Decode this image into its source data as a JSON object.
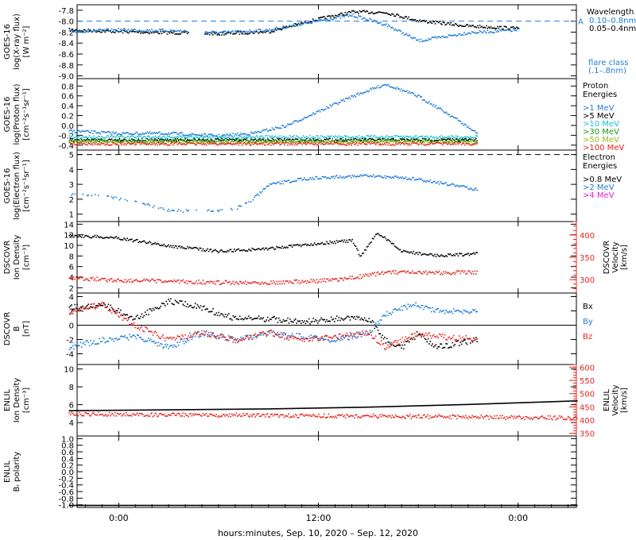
{
  "xaxis_label": "hours:minutes, Sep. 10, 2020 – Sep. 12, 2020",
  "x_ticks": [
    "0:00",
    "12:00",
    "0:00"
  ],
  "colors": {
    "black": "#000000",
    "blue": "#1f7bd6",
    "cyan": "#19c0d8",
    "green": "#1a9a1a",
    "yellowgreen": "#9ab81a",
    "orange": "#ff8c00",
    "red": "#e8231e",
    "magenta": "#e01ed8"
  },
  "chart_data": [
    {
      "type": "scatter",
      "ylabel": [
        "GOES-16",
        "log(X-ray flux)",
        "[W m⁻²]"
      ],
      "y_ticks": [
        "-7.8",
        "-8.0",
        "-8.2",
        "-8.4",
        "-8.6",
        "-8.8",
        "-9.0"
      ],
      "ylim": [
        -9.05,
        -7.7
      ],
      "reference_line": -8.0,
      "legend_title": "Wavelength",
      "legend": [
        {
          "label": "0.10–0.8nm",
          "color": "blue"
        },
        {
          "label": "0.05–0.4nm",
          "color": "black"
        }
      ],
      "legend_note": [
        "flare class",
        "(.1–.8nm)"
      ],
      "flare_marker": "A",
      "series": [
        {
          "name": "0.05–0.4nm",
          "color": "black",
          "x": [
            -3,
            0,
            3,
            6,
            9,
            12,
            14,
            16,
            18,
            21,
            24
          ],
          "y": [
            -8.15,
            -8.18,
            -8.2,
            -8.22,
            -8.18,
            -7.95,
            -7.82,
            -7.83,
            -7.98,
            -8.08,
            -8.12
          ]
        },
        {
          "name": "0.10–0.8nm",
          "color": "blue",
          "x": [
            -3,
            0,
            3,
            6,
            9,
            12,
            14,
            16,
            18,
            21,
            24
          ],
          "y": [
            -8.18,
            -8.15,
            -8.16,
            -8.2,
            -8.15,
            -7.98,
            -7.88,
            -8.05,
            -8.35,
            -8.2,
            -8.15
          ]
        }
      ],
      "gaps": [
        [
          4.2,
          5.1
        ]
      ]
    },
    {
      "type": "scatter",
      "ylabel": [
        "GOES-16",
        "log(Proton flux)",
        "[cm⁻²s⁻¹sr⁻¹]"
      ],
      "y_ticks": [
        "0.8",
        "0.6",
        "0.4",
        "0.2",
        "0.0",
        "-0.2",
        "-0.4"
      ],
      "ylim": [
        -0.5,
        0.95
      ],
      "legend_title": [
        "Proton",
        "Energies"
      ],
      "legend": [
        {
          "label": ">1 MeV",
          "color": "blue"
        },
        {
          "label": ">5 MeV",
          "color": "black"
        },
        {
          "label": ">10 MeV",
          "color": "cyan"
        },
        {
          "label": ">30 MeV",
          "color": "green"
        },
        {
          "label": ">50 MeV",
          "color": "yellowgreen"
        },
        {
          "label": ">100 MeV",
          "color": "red"
        }
      ],
      "series": [
        {
          "name": ">1 MeV",
          "color": "blue",
          "x": [
            -3,
            0,
            3,
            6,
            8,
            10,
            12,
            14,
            16,
            18,
            20,
            21.5
          ],
          "y": [
            -0.1,
            -0.15,
            -0.15,
            -0.2,
            -0.15,
            0.0,
            0.3,
            0.6,
            0.85,
            0.6,
            0.2,
            -0.15
          ]
        },
        {
          "name": ">5 MeV",
          "color": "black",
          "x": [
            -3,
            21.5
          ],
          "y": [
            -0.28,
            -0.28
          ]
        },
        {
          "name": ">10 MeV",
          "color": "cyan",
          "x": [
            -3,
            21.5
          ],
          "y": [
            -0.22,
            -0.22
          ]
        },
        {
          "name": ">30 MeV",
          "color": "green",
          "x": [
            -3,
            21.5
          ],
          "y": [
            -0.3,
            -0.3
          ]
        },
        {
          "name": ">50 MeV",
          "color": "yellowgreen",
          "x": [
            -3,
            21.5
          ],
          "y": [
            -0.33,
            -0.33
          ]
        },
        {
          "name": ">100 MeV",
          "color": "red",
          "x": [
            -3,
            21.5
          ],
          "y": [
            -0.36,
            -0.36
          ]
        }
      ]
    },
    {
      "type": "scatter",
      "ylabel": [
        "GOES-16",
        "log(Electron flux)",
        "[cm⁻²s⁻¹sr⁻¹]"
      ],
      "y_ticks": [
        "5",
        "4",
        "3",
        "2",
        "1"
      ],
      "ylim": [
        0.5,
        5.3
      ],
      "reference_line": 5.0,
      "legend_title": [
        "Electron",
        "Energies"
      ],
      "legend": [
        {
          "label": ">0.8 MeV",
          "color": "black"
        },
        {
          "label": ">2 MeV",
          "color": "blue"
        },
        {
          "label": ">4 MeV",
          "color": "magenta"
        }
      ],
      "series": [
        {
          "name": ">2 MeV",
          "color": "blue",
          "x": [
            -3,
            -1,
            1,
            3,
            5,
            7,
            8,
            9,
            11,
            13,
            15,
            17,
            19,
            21.5
          ],
          "y": [
            2.4,
            2.3,
            1.8,
            1.3,
            1.2,
            1.4,
            2.0,
            3.0,
            3.4,
            3.55,
            3.6,
            3.5,
            3.2,
            2.7
          ]
        }
      ]
    },
    {
      "type": "scatter",
      "ylabel": [
        "DSCOVR",
        "Ion Density",
        "[cm⁻³]"
      ],
      "y_ticks": [
        "14",
        "12",
        "10",
        "8",
        "6",
        "4",
        "2"
      ],
      "ylim": [
        1,
        14.5
      ],
      "y2label": [
        "DSCOVR",
        "Velocity",
        "[km/s]"
      ],
      "y2_ticks": [
        "400",
        "350",
        "300"
      ],
      "y2lim": [
        270,
        430
      ],
      "series": [
        {
          "name": "Density",
          "color": "black",
          "axis": "left",
          "x": [
            -3,
            0,
            3,
            6,
            9,
            12,
            14,
            14.5,
            15.5,
            17,
            19,
            21.5
          ],
          "y": [
            12,
            11.5,
            10,
            9,
            9.5,
            10.5,
            11,
            8,
            12.5,
            9,
            8.2,
            8.5
          ]
        },
        {
          "name": "Velocity",
          "color": "red",
          "axis": "right",
          "x": [
            -3,
            0,
            3,
            6,
            9,
            12,
            14,
            16,
            18,
            21.5
          ],
          "y": [
            305,
            300,
            297,
            295,
            295,
            298,
            305,
            318,
            316,
            318
          ]
        }
      ]
    },
    {
      "type": "scatter",
      "ylabel": [
        "DSCOVR",
        "B",
        "[nT]"
      ],
      "y_ticks": [
        "4",
        "2",
        "0",
        "-2",
        "-4"
      ],
      "ylim": [
        -5.5,
        4.5
      ],
      "zero_line": true,
      "legend": [
        {
          "label": "Bx",
          "color": "black"
        },
        {
          "label": "By",
          "color": "blue"
        },
        {
          "label": "Bz",
          "color": "red"
        }
      ],
      "series": [
        {
          "name": "Bx",
          "color": "black",
          "x": [
            -3,
            -1,
            1,
            3,
            5,
            7,
            9,
            11,
            13,
            15,
            16,
            17,
            18,
            19,
            21.5
          ],
          "y": [
            2.5,
            3,
            1,
            3.5,
            2.5,
            1,
            1,
            0.5,
            1,
            1,
            -2,
            -3,
            -1,
            -3,
            -2
          ]
        },
        {
          "name": "By",
          "color": "blue",
          "x": [
            -3,
            -1,
            1,
            3,
            5,
            7,
            9,
            11,
            13,
            15,
            16,
            17,
            18,
            19,
            21.5
          ],
          "y": [
            -3,
            -2,
            -1.5,
            -3,
            -1,
            -2,
            -1,
            -1.5,
            -2,
            -1,
            1.5,
            2.5,
            3,
            2,
            2
          ]
        },
        {
          "name": "Bz",
          "color": "red",
          "x": [
            -3,
            -1,
            1,
            3,
            5,
            7,
            9,
            11,
            13,
            15,
            16,
            17,
            18,
            19,
            21.5
          ],
          "y": [
            2,
            3,
            0,
            -2,
            -1,
            -2,
            -1,
            -2,
            -1.5,
            -1,
            -3,
            -2,
            -1,
            -1.5,
            -1.8
          ]
        }
      ]
    },
    {
      "type": "scatter",
      "ylabel": [
        "ENLIL",
        "Ion Density",
        "[cm⁻³]"
      ],
      "y_ticks": [
        "10",
        "8",
        "6",
        "4"
      ],
      "ylim": [
        2.5,
        10.5
      ],
      "y2label": [
        "ENLIL",
        "Velocity",
        "[km/s]"
      ],
      "y2_ticks": [
        "600",
        "550",
        "500",
        "450",
        "400",
        "350"
      ],
      "y2lim": [
        340,
        610
      ],
      "series": [
        {
          "name": "Density",
          "color": "black",
          "axis": "left",
          "x": [
            -3,
            3,
            9,
            15,
            21,
            27.5
          ],
          "y": [
            5.4,
            5.5,
            5.6,
            5.8,
            6.1,
            6.5
          ]
        },
        {
          "name": "Velocity",
          "color": "red",
          "axis": "right",
          "x": [
            -3,
            3,
            9,
            15,
            21,
            27.5
          ],
          "y": [
            425,
            422,
            420,
            417,
            414,
            410
          ]
        }
      ]
    },
    {
      "type": "scatter",
      "ylabel": [
        "ENLIL",
        "Bᵣ polarity"
      ],
      "y_ticks": [
        "1.0",
        "0.8",
        "0.6",
        "0.4",
        "0.2",
        "0.0",
        "-0.2",
        "-0.4",
        "-0.6",
        "-0.8",
        "-1.0"
      ],
      "ylim": [
        -1.08,
        1.08
      ],
      "series": [
        {
          "name": "Br polarity",
          "color": "black",
          "x": [
            -3,
            27.5
          ],
          "y": [
            -1.0,
            -1.0
          ]
        }
      ]
    }
  ]
}
